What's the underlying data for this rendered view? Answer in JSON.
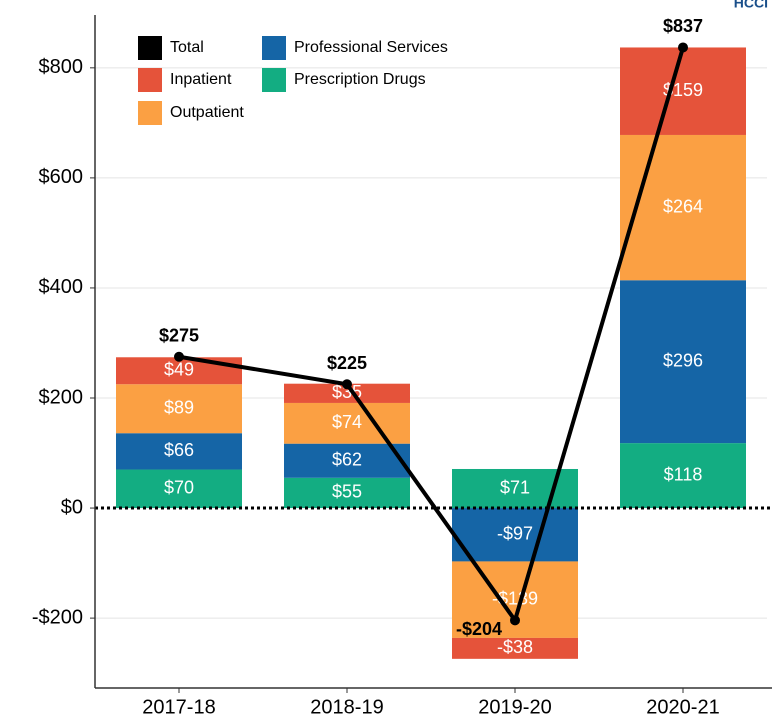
{
  "chart_data": {
    "type": "stacked-bar-line",
    "logo_text": "HCCI",
    "categories": [
      "2017-18",
      "2018-19",
      "2019-20",
      "2020-21"
    ],
    "series": [
      {
        "name": "Prescription Drugs",
        "color": "#13ad82",
        "values": [
          70,
          55,
          71,
          118
        ],
        "value_labels": [
          "$70",
          "$55",
          "$71",
          "$118"
        ]
      },
      {
        "name": "Professional Services",
        "color": "#1565a6",
        "values": [
          66,
          62,
          -97,
          296
        ],
        "value_labels": [
          "$66",
          "$62",
          "-$97",
          "$296"
        ]
      },
      {
        "name": "Outpatient",
        "color": "#fba043",
        "values": [
          89,
          74,
          -139,
          264
        ],
        "value_labels": [
          "$89",
          "$74",
          "-$139",
          "$264"
        ]
      },
      {
        "name": "Inpatient",
        "color": "#e5533a",
        "values": [
          49,
          35,
          -38,
          159
        ],
        "value_labels": [
          "$49",
          "$35",
          "-$38",
          "$159"
        ]
      }
    ],
    "total": {
      "name": "Total",
      "color": "#000000",
      "values": [
        275,
        225,
        -204,
        837
      ],
      "value_labels": [
        "$275",
        "$225",
        "-$204",
        "$837"
      ]
    },
    "ylim": [
      -327,
      896
    ],
    "yticks": [
      {
        "value": -200,
        "label": "-$200"
      },
      {
        "value": 0,
        "label": "$0"
      },
      {
        "value": 200,
        "label": "$200"
      },
      {
        "value": 400,
        "label": "$400"
      },
      {
        "value": 600,
        "label": "$600"
      },
      {
        "value": 800,
        "label": "$800"
      }
    ],
    "grid": true
  }
}
